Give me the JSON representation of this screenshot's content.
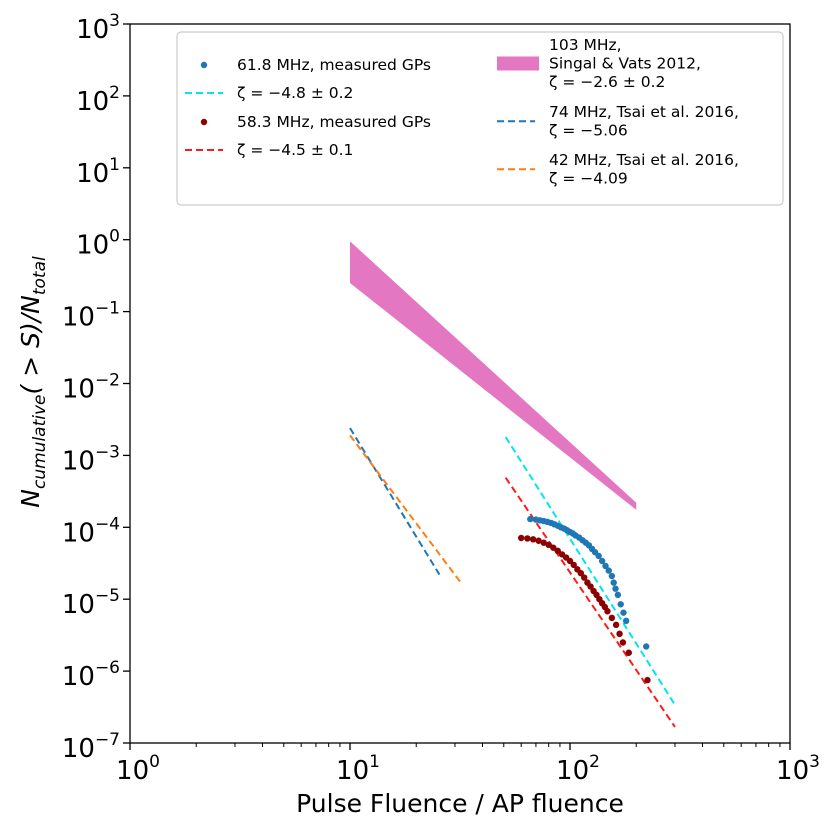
{
  "chart_data": {
    "type": "scatter",
    "title": "",
    "xlabel": "Pulse Fluence / AP fluence",
    "ylabel_main": "N",
    "ylabel_sub": "cumulative",
    "ylabel_middle": "( > S)/N",
    "ylabel_sub2": "total",
    "xscale": "log",
    "yscale": "log",
    "xlim": [
      1,
      1000
    ],
    "ylim": [
      1e-07,
      1000
    ],
    "x_ticks": [
      {
        "value": 1,
        "base": "10",
        "exp": "0"
      },
      {
        "value": 10,
        "base": "10",
        "exp": "1"
      },
      {
        "value": 100,
        "base": "10",
        "exp": "2"
      },
      {
        "value": 1000,
        "base": "10",
        "exp": "3"
      }
    ],
    "y_ticks": [
      {
        "value": 1e-07,
        "base": "10",
        "exp": "−7"
      },
      {
        "value": 1e-06,
        "base": "10",
        "exp": "−6"
      },
      {
        "value": 1e-05,
        "base": "10",
        "exp": "−5"
      },
      {
        "value": 0.0001,
        "base": "10",
        "exp": "−4"
      },
      {
        "value": 0.001,
        "base": "10",
        "exp": "−3"
      },
      {
        "value": 0.01,
        "base": "10",
        "exp": "−2"
      },
      {
        "value": 0.1,
        "base": "10",
        "exp": "−1"
      },
      {
        "value": 1,
        "base": "10",
        "exp": "0"
      },
      {
        "value": 10,
        "base": "10",
        "exp": "1"
      },
      {
        "value": 100,
        "base": "10",
        "exp": "2"
      },
      {
        "value": 1000,
        "base": "10",
        "exp": "3"
      }
    ],
    "grid": false,
    "legend_position": "top",
    "colors": {
      "blue_points": "#1f77b4",
      "blue_points_dark": "#1a6aa0",
      "red_points": "#8b0000",
      "cyan_fit": "#00e5ee",
      "red_fit": "#ff1a1a",
      "band": "#e377c2",
      "tsai74": "#1f77b4",
      "tsai42": "#ff7f0e"
    },
    "series": [
      {
        "name": "61.8 MHz, measured GPs",
        "kind": "points",
        "color_key": "blue_points",
        "points": [
          [
            66,
            0.00013
          ],
          [
            70,
            0.000128
          ],
          [
            73,
            0.000125
          ],
          [
            76,
            0.000122
          ],
          [
            79,
            0.000119
          ],
          [
            82,
            0.000115
          ],
          [
            85,
            0.00011
          ],
          [
            88,
            0.000105
          ],
          [
            91,
            0.0001
          ],
          [
            94,
            9.6e-05
          ],
          [
            97,
            9.1e-05
          ],
          [
            100,
            8.6e-05
          ],
          [
            103,
            8.2e-05
          ],
          [
            106,
            7.7e-05
          ],
          [
            110,
            7.2e-05
          ],
          [
            114,
            6.6e-05
          ],
          [
            118,
            6.1e-05
          ],
          [
            122,
            5.6e-05
          ],
          [
            126,
            5e-05
          ],
          [
            130,
            4.5e-05
          ],
          [
            135,
            4e-05
          ],
          [
            140,
            3.4e-05
          ],
          [
            145,
            2.9e-05
          ],
          [
            150,
            2.5e-05
          ],
          [
            155,
            2.1e-05
          ],
          [
            158,
            1.7e-05
          ],
          [
            161,
            1.4e-05
          ],
          [
            165,
            1.15e-05
          ],
          [
            170,
            8.5e-06
          ],
          [
            175,
            6.5e-06
          ],
          [
            180,
            5e-06
          ],
          [
            222,
            2.2e-06
          ]
        ]
      },
      {
        "name": "58.3 MHz, measured GPs",
        "kind": "points",
        "color_key": "red_points",
        "points": [
          [
            60,
            7.1e-05
          ],
          [
            64,
            7e-05
          ],
          [
            68,
            6.8e-05
          ],
          [
            72,
            6.5e-05
          ],
          [
            76,
            6.1e-05
          ],
          [
            80,
            5.7e-05
          ],
          [
            84,
            5.2e-05
          ],
          [
            88,
            4.7e-05
          ],
          [
            92,
            4.2e-05
          ],
          [
            96,
            3.8e-05
          ],
          [
            100,
            3.4e-05
          ],
          [
            104,
            3e-05
          ],
          [
            108,
            2.6e-05
          ],
          [
            112,
            2.3e-05
          ],
          [
            116,
            2e-05
          ],
          [
            120,
            1.7e-05
          ],
          [
            124,
            1.5e-05
          ],
          [
            128,
            1.3e-05
          ],
          [
            132,
            1.15e-05
          ],
          [
            136,
            1e-05
          ],
          [
            140,
            8.8e-06
          ],
          [
            144,
            7.8e-06
          ],
          [
            148,
            6.8e-06
          ],
          [
            155,
            5.5e-06
          ],
          [
            162,
            4.4e-06
          ],
          [
            168,
            3.3e-06
          ],
          [
            174,
            2.5e-06
          ],
          [
            185,
            1.8e-06
          ],
          [
            225,
            7.5e-07
          ]
        ]
      },
      {
        "name": "ζ = −4.8 ± 0.2",
        "kind": "line",
        "dash": "7,4",
        "color_key": "cyan_fit",
        "points": [
          [
            51,
            0.0018
          ],
          [
            300,
            3.4e-07
          ]
        ]
      },
      {
        "name": "ζ = −4.5 ± 0.1",
        "kind": "line",
        "dash": "7,4",
        "color_key": "red_fit",
        "points": [
          [
            51,
            0.00049
          ],
          [
            300,
            1.67e-07
          ]
        ]
      },
      {
        "name": "103 MHz, Singal & Vats 2012, ζ = −2.6 ± 0.2",
        "kind": "band",
        "color_key": "band",
        "upper": [
          [
            10,
            0.95
          ],
          [
            200,
            0.00022
          ]
        ],
        "lower": [
          [
            10,
            0.25
          ],
          [
            200,
            0.000175
          ]
        ]
      },
      {
        "name": "74 MHz, Tsai et al. 2016, ζ = −5.06",
        "kind": "line",
        "dash": "7,4",
        "color_key": "tsai74",
        "points": [
          [
            10,
            0.0024
          ],
          [
            25.5,
            2.2e-05
          ]
        ]
      },
      {
        "name": "42 MHz, Tsai et al. 2016, ζ = −4.09",
        "kind": "line",
        "dash": "7,4",
        "color_key": "tsai42",
        "points": [
          [
            10,
            0.0019
          ],
          [
            32,
            1.68e-05
          ]
        ]
      }
    ],
    "legend": {
      "entries": [
        {
          "lines": [
            "61.8 MHz, measured GPs"
          ],
          "marker": "point",
          "color_key": "blue_points"
        },
        {
          "lines": [
            "ζ = −4.8 ± 0.2"
          ],
          "marker": "dash",
          "color_key": "cyan_fit"
        },
        {
          "lines": [
            "58.3 MHz, measured GPs"
          ],
          "marker": "point",
          "color_key": "red_points"
        },
        {
          "lines": [
            "ζ = −4.5 ± 0.1"
          ],
          "marker": "dash",
          "color_key": "red_fit"
        },
        {
          "lines": [
            "103 MHz,",
            "Singal & Vats 2012,",
            "ζ = −2.6 ± 0.2"
          ],
          "marker": "patch",
          "color_key": "band"
        },
        {
          "lines": [
            "74 MHz, Tsai et al. 2016,",
            "ζ = −5.06"
          ],
          "marker": "dash",
          "color_key": "tsai74"
        },
        {
          "lines": [
            "42 MHz, Tsai et al. 2016,",
            "ζ = −4.09"
          ],
          "marker": "dash",
          "color_key": "tsai42"
        }
      ]
    }
  }
}
